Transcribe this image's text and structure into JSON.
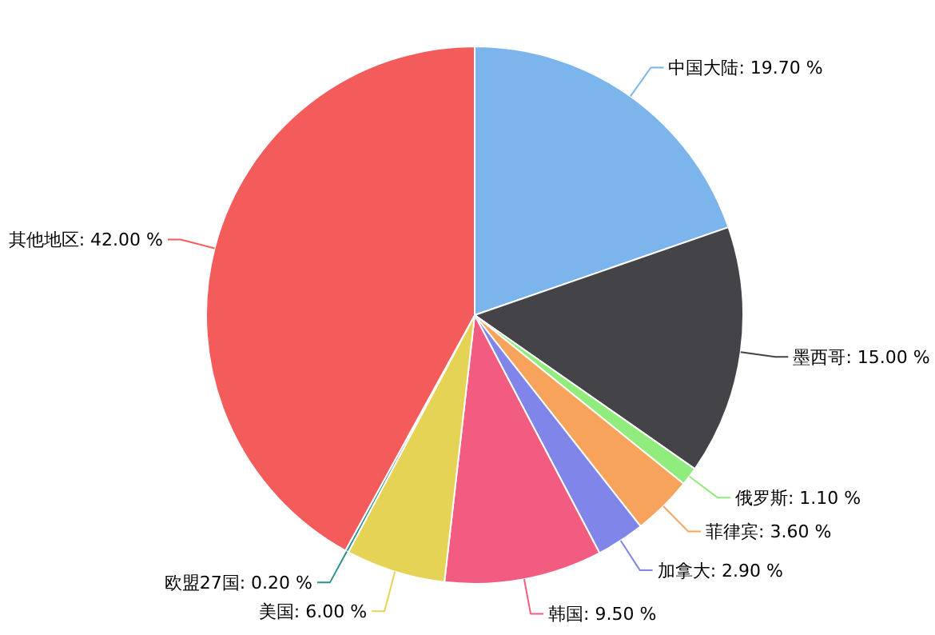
{
  "chart_data": {
    "type": "pie",
    "categories": [
      "中国大陆",
      "墨西哥",
      "俄罗斯",
      "菲律宾",
      "加拿大",
      "韩国",
      "美国",
      "欧盟27国",
      "其他地区"
    ],
    "values": [
      19.7,
      15.0,
      1.1,
      3.6,
      2.9,
      9.5,
      6.0,
      0.2,
      42.0
    ],
    "value_labels": [
      "19.70 %",
      "15.00 %",
      "1.10 %",
      "3.60 %",
      "2.90 %",
      "9.50 %",
      "6.00 %",
      "0.20 %",
      "42.00 %"
    ],
    "colors": [
      "#7cb5ec",
      "#434348",
      "#90ed7d",
      "#f7a35c",
      "#8085e9",
      "#f15c80",
      "#e4d354",
      "#2b908f",
      "#f45b5b"
    ]
  }
}
